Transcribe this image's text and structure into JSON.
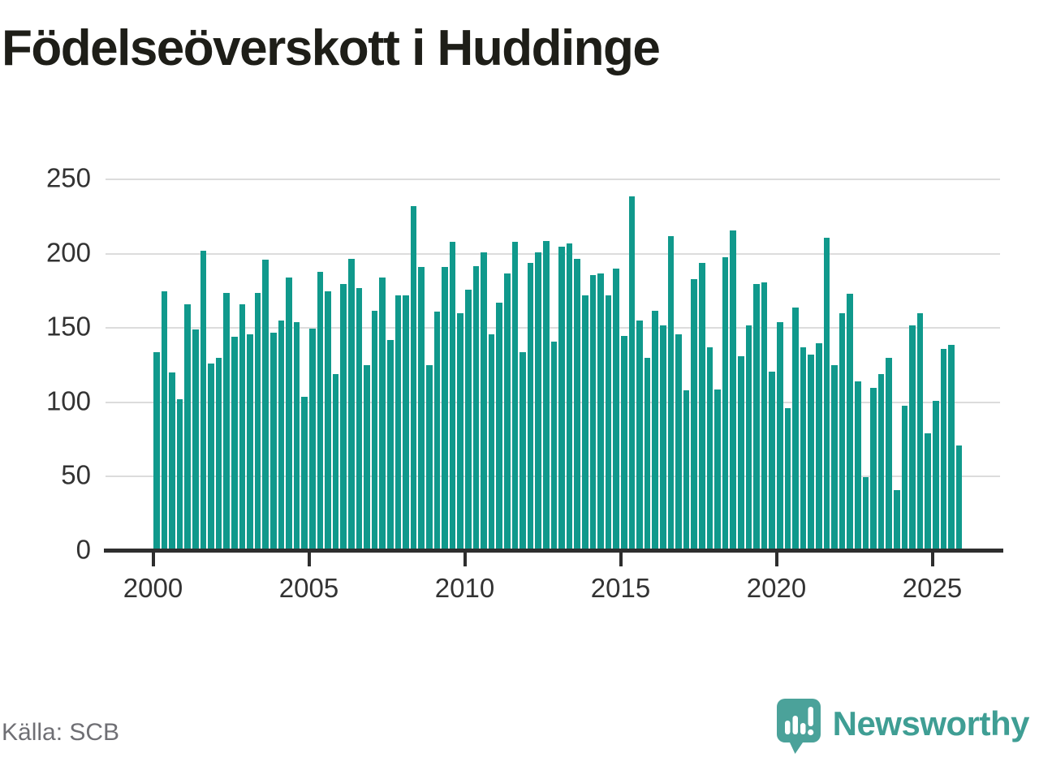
{
  "title": "Födelseöverskott i Huddinge",
  "source": "Källa: SCB",
  "branding": {
    "logo_text": "Newsworthy",
    "wordmark_color": "#3f9e94",
    "icon_color": "#4ba29a",
    "icon_glyph_color": "#ffffff"
  },
  "colors": {
    "bar": "#10998c",
    "gridline": "#dcdcdc",
    "axis": "#2e2e2e",
    "tick_label": "#333333",
    "title": "#1e1e18",
    "source": "#6f6f74",
    "background": "#ffffff"
  },
  "chart_data": {
    "type": "bar",
    "title": "Födelseöverskott i Huddinge",
    "frequency": "quarterly",
    "first_period": "2000-Q1",
    "last_period": "2025-Q4",
    "xlabel": "",
    "ylabel": "",
    "ylim": [
      0,
      250
    ],
    "grid": "horizontal",
    "legend": "none",
    "y_ticks": [
      0,
      50,
      100,
      150,
      200,
      250
    ],
    "x_ticks": [
      2000,
      2005,
      2010,
      2015,
      2020,
      2025
    ],
    "values": [
      134,
      175,
      120,
      102,
      166,
      149,
      202,
      126,
      130,
      174,
      144,
      166,
      146,
      174,
      196,
      147,
      155,
      184,
      154,
      104,
      150,
      188,
      175,
      119,
      180,
      197,
      177,
      125,
      162,
      184,
      142,
      172,
      172,
      232,
      191,
      125,
      161,
      191,
      208,
      160,
      176,
      192,
      201,
      146,
      167,
      187,
      208,
      134,
      194,
      201,
      209,
      141,
      205,
      207,
      197,
      172,
      186,
      187,
      172,
      190,
      145,
      239,
      155,
      130,
      162,
      152,
      212,
      146,
      108,
      183,
      194,
      137,
      109,
      198,
      216,
      131,
      152,
      180,
      181,
      121,
      154,
      96,
      164,
      137,
      132,
      140,
      211,
      125,
      160,
      173,
      114,
      50,
      110,
      119,
      130,
      41,
      98,
      152,
      160,
      79,
      101,
      136,
      139,
      71
    ]
  }
}
